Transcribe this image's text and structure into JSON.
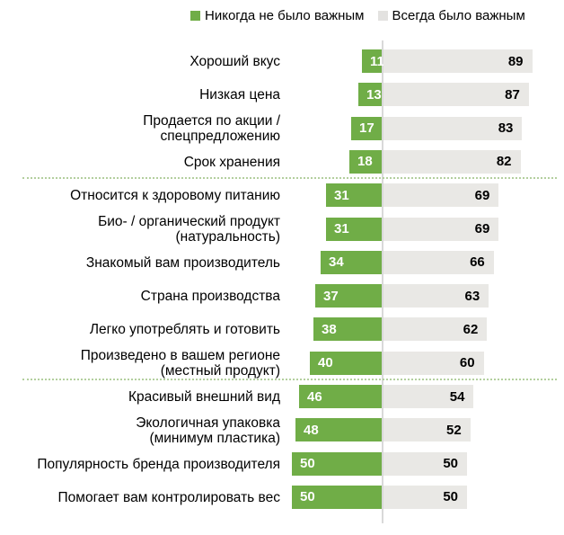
{
  "colors": {
    "never_important_green": "#70ad47",
    "always_important_gray": "#e9e8e5",
    "legend_gray_swatch": "#e3e2e0",
    "baseline_line": "#d9d9d9",
    "section_divider_green": "#b3cf9e",
    "value_on_green": "#ffffff",
    "value_on_gray": "#000000",
    "label_text": "#000000"
  },
  "legend": [
    {
      "label": "Никогда не было важным",
      "color": "#70ad47"
    },
    {
      "label": "Всегда было важным",
      "color": "#e3e2e0"
    }
  ],
  "chart_data": {
    "type": "bar",
    "orientation": "horizontal",
    "stacked": true,
    "unit": "percent",
    "xlim": [
      0,
      100
    ],
    "grid": false,
    "legend_position": "top",
    "categories": [
      "Хороший вкус",
      "Низкая цена",
      "Продается по акции /\nспецпредложению",
      "Срок хранения",
      "Относится к здоровому питанию",
      "Био- / органический продукт\n(натуральность)",
      "Знакомый вам производитель",
      "Страна производства",
      "Легко употреблять и готовить",
      "Произведено в вашем регионе\n(местный продукт)",
      "Красивый внешний вид",
      "Экологичная упаковка\n(минимум пластика)",
      "Популярность бренда производителя",
      "Помогает вам контролировать вес"
    ],
    "series": [
      {
        "name": "Никогда не было важным",
        "values": [
          11,
          13,
          17,
          18,
          31,
          31,
          34,
          37,
          38,
          40,
          46,
          48,
          50,
          50
        ]
      },
      {
        "name": "Всегда было важным",
        "values": [
          89,
          87,
          83,
          82,
          69,
          69,
          66,
          63,
          62,
          60,
          54,
          52,
          50,
          50
        ]
      }
    ],
    "section_dividers_after_rows": [
      4,
      10
    ]
  }
}
